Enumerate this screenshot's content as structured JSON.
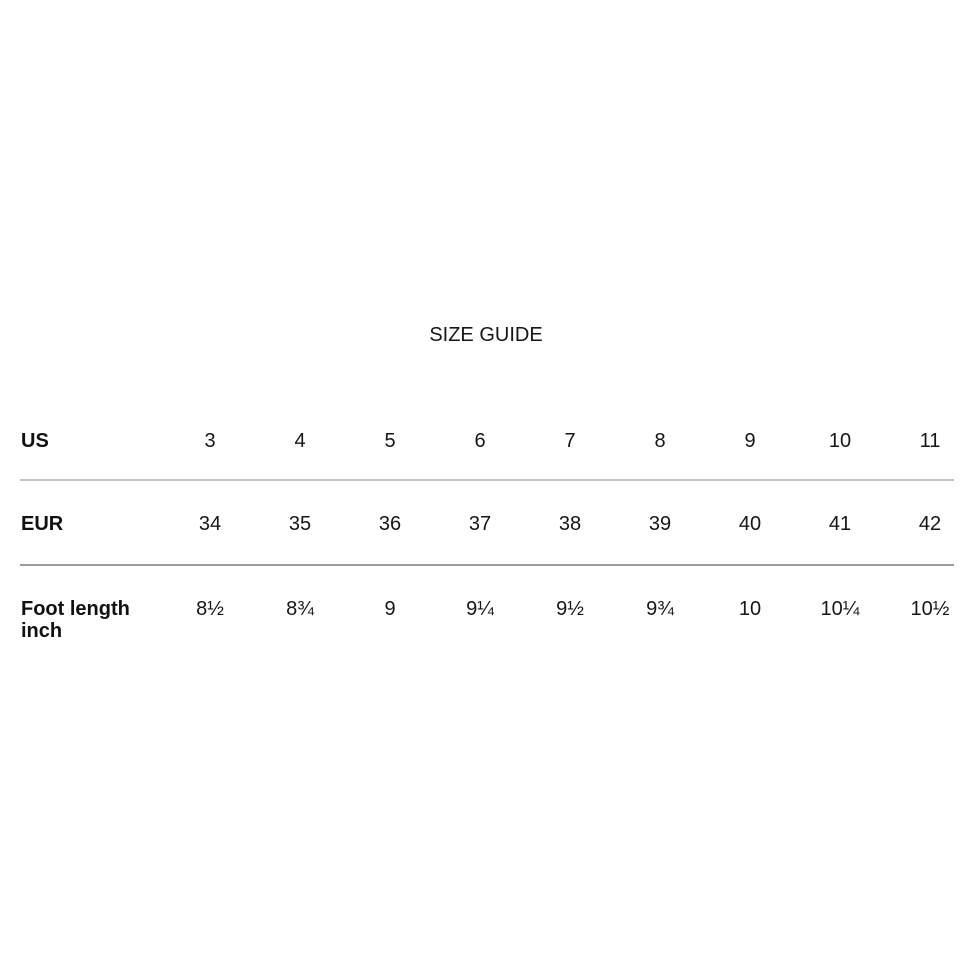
{
  "page": {
    "background": "#ffffff"
  },
  "title": "SIZE GUIDE",
  "size_table": {
    "rows": [
      {
        "label": "US",
        "values": [
          "3",
          "4",
          "5",
          "6",
          "7",
          "8",
          "9",
          "10",
          "11"
        ]
      },
      {
        "label": "EUR",
        "values": [
          "34",
          "35",
          "36",
          "37",
          "38",
          "39",
          "40",
          "41",
          "42"
        ]
      },
      {
        "label": "Foot length\ninch",
        "values": [
          "8½",
          "8¾",
          "9",
          "9¼",
          "9½",
          "9¾",
          "10",
          "10¼",
          "10½"
        ]
      }
    ]
  },
  "colors": {
    "text": "#111111",
    "divider_after_us_row": "#c4c4c4",
    "divider_after_eur_row": "#9c9c9c"
  }
}
